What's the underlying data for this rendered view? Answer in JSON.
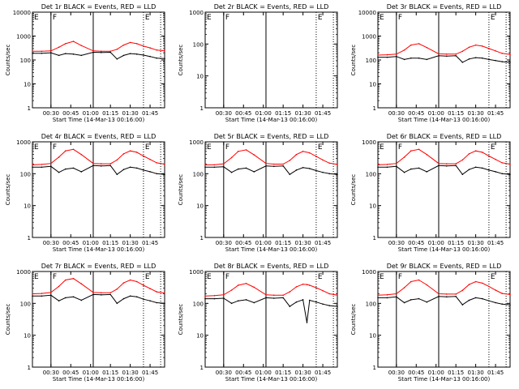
{
  "figure": {
    "common": {
      "ylabel": "Counts/sec",
      "xlabel": "Start Time (14-Mar-13 00:16:00)",
      "xticks": [
        "00:30",
        "00:45",
        "01:00",
        "01:15",
        "01:30",
        "01:45"
      ],
      "yticks": [
        "1",
        "10",
        "100",
        "1000",
        "10000"
      ],
      "legend_text": "BLACK = Events, RED = LLD",
      "colors": {
        "events": "#000000",
        "lld": "#ff0000"
      }
    }
  },
  "chart_data": [
    {
      "type": "line",
      "title": "Det 1r BLACK = Events, RED = LLD",
      "ytop": 10000,
      "xlim": [
        "00:16:00",
        "01:56:00"
      ],
      "ylim": [
        1,
        10000
      ],
      "yscale": "log",
      "grid": false,
      "xlabel": "Start Time (14-Mar-13 00:16:00)",
      "ylabel": "Counts/sec",
      "vlines_solid": [
        "00:30",
        "01:02"
      ],
      "vlines_dotted": [
        "01:40",
        "01:53"
      ],
      "markers": [
        {
          "label": "E",
          "x": "00:16"
        },
        {
          "label": "F",
          "x": "00:30"
        },
        {
          "label": "E",
          "x": "01:40"
        }
      ],
      "x": [
        "00:16",
        "00:23",
        "00:30",
        "00:36",
        "00:41",
        "00:47",
        "00:53",
        "01:02",
        "01:08",
        "01:15",
        "01:20",
        "01:25",
        "01:30",
        "01:35",
        "01:40",
        "01:45",
        "01:50",
        "01:56"
      ],
      "series": [
        {
          "name": "Events",
          "color": "#000000",
          "values": [
            190,
            190,
            200,
            155,
            185,
            175,
            155,
            210,
            205,
            210,
            110,
            155,
            185,
            175,
            160,
            140,
            120,
            115
          ]
        },
        {
          "name": "LLD",
          "color": "#ff0000",
          "values": [
            230,
            230,
            240,
            340,
            480,
            600,
            400,
            240,
            230,
            230,
            280,
            420,
            540,
            480,
            380,
            320,
            260,
            240
          ]
        }
      ]
    },
    {
      "type": "line",
      "title": "Det 2r BLACK = Events, RED = LLD",
      "ytop": 1000,
      "xlim": [
        "00:16:00",
        "01:56:00"
      ],
      "ylim": [
        1,
        1000
      ],
      "yscale": "log",
      "grid": false,
      "xlabel": "Start Time (14-Mar-13 00:16:00)",
      "ylabel": "Counts/sec",
      "vlines_solid": [
        "00:30",
        "01:02"
      ],
      "vlines_dotted": [
        "01:40",
        "01:53"
      ],
      "markers": [
        {
          "label": "E",
          "x": "00:16"
        },
        {
          "label": "F",
          "x": "00:30"
        },
        {
          "label": "E",
          "x": "01:40"
        }
      ],
      "x": [],
      "series": []
    },
    {
      "type": "line",
      "title": "Det 3r BLACK = Events, RED = LLD",
      "ytop": 10000,
      "xlim": [
        "00:16:00",
        "01:56:00"
      ],
      "ylim": [
        1,
        10000
      ],
      "yscale": "log",
      "grid": false,
      "xlabel": "Start Time (14-Mar-13 00:16:00)",
      "ylabel": "Counts/sec",
      "vlines_solid": [
        "00:30",
        "01:02"
      ],
      "vlines_dotted": [
        "01:40",
        "01:53"
      ],
      "markers": [
        {
          "label": "E",
          "x": "00:16"
        },
        {
          "label": "F",
          "x": "00:30"
        },
        {
          "label": "E",
          "x": "01:40"
        }
      ],
      "x": [
        "00:16",
        "00:23",
        "00:30",
        "00:36",
        "00:41",
        "00:47",
        "00:53",
        "01:02",
        "01:08",
        "01:15",
        "01:20",
        "01:25",
        "01:30",
        "01:35",
        "01:40",
        "01:45",
        "01:50",
        "01:56"
      ],
      "series": [
        {
          "name": "Events",
          "color": "#000000",
          "values": [
            130,
            130,
            140,
            105,
            120,
            120,
            105,
            150,
            145,
            150,
            80,
            110,
            125,
            120,
            105,
            95,
            85,
            80
          ]
        },
        {
          "name": "LLD",
          "color": "#ff0000",
          "values": [
            160,
            165,
            175,
            260,
            420,
            480,
            330,
            180,
            175,
            175,
            230,
            340,
            420,
            380,
            300,
            240,
            190,
            170
          ]
        }
      ]
    },
    {
      "type": "line",
      "title": "Det 4r BLACK = Events, RED = LLD",
      "ytop": 1000,
      "xlim": [
        "00:16:00",
        "01:56:00"
      ],
      "ylim": [
        1,
        1000
      ],
      "yscale": "log",
      "grid": false,
      "xlabel": "Start Time (14-Mar-13 00:16:00)",
      "ylabel": "Counts/sec",
      "vlines_solid": [
        "00:30",
        "01:02"
      ],
      "vlines_dotted": [
        "01:40",
        "01:53"
      ],
      "markers": [
        {
          "label": "E",
          "x": "00:16"
        },
        {
          "label": "F",
          "x": "00:30"
        },
        {
          "label": "E",
          "x": "01:40"
        }
      ],
      "x": [
        "00:16",
        "00:23",
        "00:30",
        "00:36",
        "00:41",
        "00:47",
        "00:53",
        "01:02",
        "01:08",
        "01:15",
        "01:20",
        "01:25",
        "01:30",
        "01:35",
        "01:40",
        "01:45",
        "01:50",
        "01:56"
      ],
      "series": [
        {
          "name": "Events",
          "color": "#000000",
          "values": [
            160,
            160,
            170,
            110,
            140,
            150,
            115,
            180,
            175,
            180,
            95,
            135,
            160,
            150,
            130,
            115,
            100,
            95
          ]
        },
        {
          "name": "LLD",
          "color": "#ff0000",
          "values": [
            190,
            195,
            210,
            330,
            520,
            580,
            400,
            210,
            205,
            205,
            270,
            420,
            520,
            470,
            360,
            280,
            220,
            200
          ]
        }
      ]
    },
    {
      "type": "line",
      "title": "Det 5r BLACK = Events, RED = LLD",
      "ytop": 1000,
      "xlim": [
        "00:16:00",
        "01:56:00"
      ],
      "ylim": [
        1,
        1000
      ],
      "yscale": "log",
      "grid": false,
      "xlabel": "Start Time (14-Mar-13 00:16:00)",
      "ylabel": "Counts/sec",
      "vlines_solid": [
        "00:30",
        "01:02"
      ],
      "vlines_dotted": [
        "01:40",
        "01:53"
      ],
      "markers": [
        {
          "label": "E",
          "x": "00:16"
        },
        {
          "label": "F",
          "x": "00:30"
        },
        {
          "label": "E",
          "x": "01:40"
        }
      ],
      "x": [
        "00:16",
        "00:23",
        "00:30",
        "00:36",
        "00:41",
        "00:47",
        "00:53",
        "01:02",
        "01:08",
        "01:15",
        "01:20",
        "01:25",
        "01:30",
        "01:35",
        "01:40",
        "01:45",
        "01:50",
        "01:56"
      ],
      "series": [
        {
          "name": "Events",
          "color": "#000000",
          "values": [
            160,
            160,
            165,
            110,
            140,
            150,
            115,
            175,
            170,
            175,
            95,
            130,
            155,
            145,
            125,
            110,
            100,
            95
          ]
        },
        {
          "name": "LLD",
          "color": "#ff0000",
          "values": [
            190,
            190,
            205,
            320,
            500,
            560,
            390,
            210,
            200,
            200,
            260,
            400,
            500,
            450,
            350,
            270,
            215,
            195
          ]
        }
      ]
    },
    {
      "type": "line",
      "title": "Det 6r BLACK = Events, RED = LLD",
      "ytop": 1000,
      "xlim": [
        "00:16:00",
        "01:56:00"
      ],
      "ylim": [
        1,
        1000
      ],
      "yscale": "log",
      "grid": false,
      "xlabel": "Start Time (14-Mar-13 00:16:00)",
      "ylabel": "Counts/sec",
      "vlines_solid": [
        "00:30",
        "01:02"
      ],
      "vlines_dotted": [
        "01:40",
        "01:53"
      ],
      "markers": [
        {
          "label": "E",
          "x": "00:16"
        },
        {
          "label": "F",
          "x": "00:30"
        },
        {
          "label": "E",
          "x": "01:40"
        }
      ],
      "x": [
        "00:16",
        "00:23",
        "00:30",
        "00:36",
        "00:41",
        "00:47",
        "00:53",
        "01:02",
        "01:08",
        "01:15",
        "01:20",
        "01:25",
        "01:30",
        "01:35",
        "01:40",
        "01:45",
        "01:50",
        "01:56"
      ],
      "series": [
        {
          "name": "Events",
          "color": "#000000",
          "values": [
            160,
            160,
            170,
            110,
            140,
            150,
            115,
            180,
            175,
            180,
            95,
            135,
            160,
            150,
            130,
            115,
            100,
            95
          ]
        },
        {
          "name": "LLD",
          "color": "#ff0000",
          "values": [
            190,
            195,
            210,
            330,
            520,
            580,
            400,
            210,
            205,
            205,
            270,
            420,
            520,
            470,
            360,
            280,
            220,
            200
          ]
        }
      ]
    },
    {
      "type": "line",
      "title": "Det 7r BLACK = Events, RED = LLD",
      "ytop": 1000,
      "xlim": [
        "00:16:00",
        "01:56:00"
      ],
      "ylim": [
        1,
        1000
      ],
      "yscale": "log",
      "grid": false,
      "xlabel": "Start Time (14-Mar-13 00:16:00)",
      "ylabel": "Counts/sec",
      "vlines_solid": [
        "00:30",
        "01:02"
      ],
      "vlines_dotted": [
        "01:40",
        "01:53"
      ],
      "markers": [
        {
          "label": "E",
          "x": "00:16"
        },
        {
          "label": "F",
          "x": "00:30"
        },
        {
          "label": "E",
          "x": "01:40"
        }
      ],
      "x": [
        "00:16",
        "00:23",
        "00:30",
        "00:36",
        "00:41",
        "00:47",
        "00:53",
        "01:02",
        "01:08",
        "01:15",
        "01:20",
        "01:25",
        "01:30",
        "01:35",
        "01:40",
        "01:45",
        "01:50",
        "01:56"
      ],
      "series": [
        {
          "name": "Events",
          "color": "#000000",
          "values": [
            170,
            170,
            180,
            120,
            150,
            160,
            125,
            190,
            185,
            190,
            100,
            140,
            170,
            160,
            135,
            120,
            105,
            100
          ]
        },
        {
          "name": "LLD",
          "color": "#ff0000",
          "values": [
            200,
            205,
            220,
            340,
            540,
            600,
            410,
            220,
            215,
            215,
            280,
            440,
            540,
            480,
            370,
            290,
            230,
            210
          ]
        }
      ]
    },
    {
      "type": "line",
      "title": "Det 8r BLACK = Events, RED = LLD",
      "ytop": 1000,
      "xlim": [
        "00:16:00",
        "01:56:00"
      ],
      "ylim": [
        1,
        1000
      ],
      "yscale": "log",
      "grid": false,
      "xlabel": "Start Time (14-Mar-13 00:16:00)",
      "ylabel": "Counts/sec",
      "vlines_solid": [
        "00:30",
        "01:02"
      ],
      "vlines_dotted": [
        "01:40",
        "01:53"
      ],
      "markers": [
        {
          "label": "E",
          "x": "00:16"
        },
        {
          "label": "F",
          "x": "00:30"
        },
        {
          "label": "E",
          "x": "01:40"
        }
      ],
      "x": [
        "00:16",
        "00:23",
        "00:30",
        "00:36",
        "00:41",
        "00:47",
        "00:53",
        "01:02",
        "01:08",
        "01:15",
        "01:20",
        "01:25",
        "01:30",
        "01:33",
        "01:35",
        "01:40",
        "01:45",
        "01:50",
        "01:56"
      ],
      "series": [
        {
          "name": "Events",
          "color": "#000000",
          "values": [
            140,
            140,
            145,
            100,
            120,
            130,
            105,
            150,
            145,
            150,
            80,
            110,
            130,
            25,
            125,
            110,
            95,
            85,
            80
          ]
        },
        {
          "name": "LLD",
          "color": "#ff0000",
          "values": [
            170,
            175,
            185,
            260,
            370,
            420,
            320,
            185,
            180,
            180,
            230,
            330,
            400,
            390,
            370,
            310,
            250,
            200,
            180
          ]
        }
      ]
    },
    {
      "type": "line",
      "title": "Det 9r BLACK = Events, RED = LLD",
      "ytop": 1000,
      "xlim": [
        "00:16:00",
        "01:56:00"
      ],
      "ylim": [
        1,
        1000
      ],
      "yscale": "log",
      "grid": false,
      "xlabel": "Start Time (14-Mar-13 00:16:00)",
      "ylabel": "Counts/sec",
      "vlines_solid": [
        "00:30",
        "01:02"
      ],
      "vlines_dotted": [
        "01:40",
        "01:53"
      ],
      "markers": [
        {
          "label": "E",
          "x": "00:16"
        },
        {
          "label": "F",
          "x": "00:30"
        },
        {
          "label": "E",
          "x": "01:40"
        }
      ],
      "x": [
        "00:16",
        "00:23",
        "00:30",
        "00:36",
        "00:41",
        "00:47",
        "00:53",
        "01:02",
        "01:08",
        "01:15",
        "01:20",
        "01:25",
        "01:30",
        "01:35",
        "01:40",
        "01:45",
        "01:50",
        "01:56"
      ],
      "series": [
        {
          "name": "Events",
          "color": "#000000",
          "values": [
            150,
            150,
            160,
            105,
            130,
            140,
            110,
            165,
            160,
            165,
            90,
            125,
            150,
            140,
            120,
            105,
            95,
            90
          ]
        },
        {
          "name": "LLD",
          "color": "#ff0000",
          "values": [
            180,
            185,
            200,
            310,
            480,
            540,
            380,
            200,
            195,
            195,
            255,
            390,
            480,
            430,
            340,
            260,
            205,
            190
          ]
        }
      ]
    }
  ]
}
